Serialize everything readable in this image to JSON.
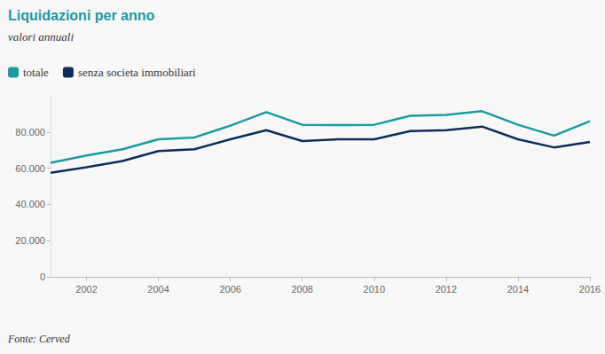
{
  "chart_data": {
    "type": "line",
    "title": "Liquidazioni per anno",
    "subtitle": "valori annuali",
    "source": "Fonte: Cerved",
    "x": [
      2001,
      2002,
      2003,
      2004,
      2005,
      2006,
      2007,
      2008,
      2009,
      2010,
      2011,
      2012,
      2013,
      2014,
      2015,
      2016
    ],
    "series": [
      {
        "name": "totale",
        "color": "#1b9aa1",
        "values": [
          63000,
          67000,
          70500,
          76000,
          77000,
          83500,
          91000,
          84000,
          83800,
          84000,
          89000,
          89500,
          91500,
          84000,
          78000,
          86000
        ]
      },
      {
        "name": "senza societa immobiliari",
        "color": "#0c2d5b",
        "values": [
          57500,
          60500,
          64000,
          69500,
          70500,
          76000,
          81000,
          75000,
          76000,
          76000,
          80500,
          81000,
          83000,
          76000,
          71500,
          74500
        ]
      }
    ],
    "xlim": [
      2001,
      2016
    ],
    "xticks": [
      2002,
      2004,
      2006,
      2008,
      2010,
      2012,
      2014,
      2016
    ],
    "ylim": [
      0,
      100000
    ],
    "yticks": [
      0,
      {
        "value": 20000,
        "label": "20.000"
      },
      {
        "value": 40000,
        "label": "40.000"
      },
      {
        "value": 60000,
        "label": "60.000"
      },
      {
        "value": 80000,
        "label": "80.000"
      }
    ],
    "grid": false,
    "legend": "top-left"
  }
}
